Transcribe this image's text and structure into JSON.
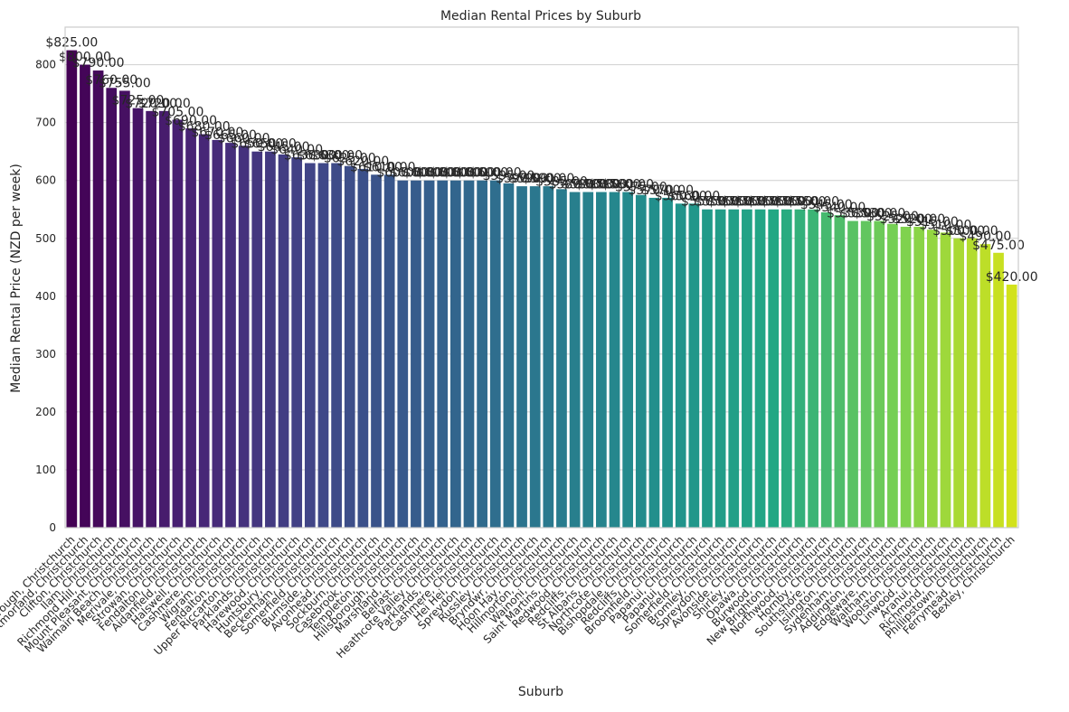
{
  "chart_data": {
    "type": "bar",
    "title": "Median Rental Prices by Suburb",
    "xlabel": "Suburb",
    "ylabel": "Median Rental Price (NZD per week)",
    "ylim": [
      0,
      865
    ],
    "yticks": [
      0,
      100,
      200,
      300,
      400,
      500,
      600,
      700,
      800
    ],
    "grid": true,
    "value_format": "$",
    "categories": [
      "Scarborough, Christchurch",
      "Westmorland, Christchurch",
      "Clifton, Christchurch",
      "Ilam, Christchurch",
      "Richmond Hill, Christchurch",
      "Mount Pleasant, Christchurch",
      "Waimairi Beach, Christchurch",
      "Merivale, Christchurch",
      "Strowan, Christchurch",
      "Fendalton, Christchurch",
      "Aidanfield, Christchurch",
      "Halswell, Christchurch",
      "Cashmere, Christchurch",
      "Wigram, Christchurch",
      "Fendalton, Christchurch",
      "Upper Riccarton, Christchurch",
      "Parklands, Christchurch",
      "Harewood, Christchurch",
      "Huntsbury, Christchurch",
      "Beckenham, Christchurch",
      "Somerfield, Christchurch",
      "Burnside, Christchurch",
      "Avonhead, Christchurch",
      "Sockburn, Christchurch",
      "Casebrook, Christchurch",
      "Templeton, Christchurch",
      "Hillsborough, Christchurch",
      "Marshland, Christchurch",
      "Belfast, Christchurch",
      "Heathcote Valley, Christchurch",
      "Parklands, Christchurch",
      "Cashmere, Christchurch",
      "Hei Hei, Christchurch",
      "Spreydon, Christchurch",
      "Russley, Christchurch",
      "Bryndwr, Christchurch",
      "Hoon Hay, Christchurch",
      "Hillmorton, Christchurch",
      "Wainoni, Christchurch",
      "Saint Martins, Christchurch",
      "Redwood, Christchurch",
      "Redcliffs, Christchurch",
      "St Albans, Christchurch",
      "Northcote, Christchurch",
      "Bishopdale, Christchurch",
      "Redcliffs, Christchurch",
      "Broomfield, Christchurch",
      "Papanui, Christchurch",
      "Papanui, Christchurch",
      "Somerfield, Christchurch",
      "Bromley, Christchurch",
      "Spreydon, Christchurch",
      "Avonside, Christchurch",
      "Shirley, Christchurch",
      "Opawa, Christchurch",
      "Burwood, Christchurch",
      "New Brighton, Christchurch",
      "Northwood, Christchurch",
      "Hornby, Christchurch",
      "Southshore, Christchurch",
      "Islington, Christchurch",
      "Sydenham, Christchurch",
      "Addington, Christchurch",
      "Edgeware, Christchurch",
      "Waltham, Christchurch",
      "Woolston, Christchurch",
      "Linwood, Christchurch",
      "Aranui, Christchurch",
      "Richmond, Christchurch",
      "Phillipstown, Christchurch",
      "Ferrymead, Christchurch",
      "Bexley, Christchurch"
    ],
    "values": [
      825,
      800,
      790,
      760,
      755,
      725,
      720,
      720,
      705,
      690,
      680,
      670,
      665,
      660,
      650,
      650,
      645,
      640,
      630,
      630,
      630,
      625,
      620,
      610,
      610,
      600,
      600,
      600,
      600,
      600,
      600,
      600,
      600,
      595,
      590,
      590,
      590,
      585,
      580,
      580,
      580,
      580,
      580,
      575,
      570,
      570,
      560,
      560,
      550,
      550,
      550,
      550,
      550,
      550,
      550,
      550,
      550,
      545,
      540,
      530,
      530,
      530,
      525,
      520,
      520,
      515,
      510,
      500,
      500,
      490,
      475,
      420
    ]
  }
}
